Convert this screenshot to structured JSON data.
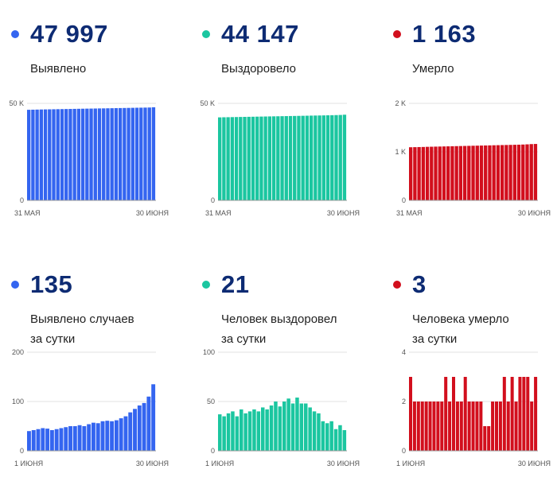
{
  "panels": [
    {
      "value": "47 997",
      "label_lines": [
        "Выявлено"
      ],
      "color": "#3465f0",
      "chart_data": {
        "type": "bar",
        "yticks": [
          {
            "v": 0,
            "label": "0"
          },
          {
            "v": 50000,
            "label": "50 K"
          }
        ],
        "ylim": [
          0,
          50000
        ],
        "xlabels": [
          "31 МАЯ",
          "30 ИЮНЯ"
        ],
        "values": [
          46690,
          46740,
          46790,
          46840,
          46880,
          46920,
          46960,
          47000,
          47040,
          47080,
          47120,
          47160,
          47200,
          47240,
          47280,
          47310,
          47350,
          47390,
          47420,
          47460,
          47500,
          47540,
          47580,
          47620,
          47660,
          47700,
          47740,
          47780,
          47820,
          47860,
          47997
        ]
      }
    },
    {
      "value": "44 147",
      "label_lines": [
        "Выздоровело"
      ],
      "color": "#1bc6a0",
      "chart_data": {
        "type": "bar",
        "yticks": [
          {
            "v": 0,
            "label": "0"
          },
          {
            "v": 50000,
            "label": "50 K"
          }
        ],
        "ylim": [
          0,
          50000
        ],
        "xlabels": [
          "31 МАЯ",
          "30 ИЮНЯ"
        ],
        "values": [
          42780,
          42830,
          42870,
          42910,
          42950,
          42990,
          43030,
          43070,
          43110,
          43150,
          43190,
          43230,
          43270,
          43310,
          43350,
          43390,
          43430,
          43470,
          43510,
          43550,
          43590,
          43630,
          43680,
          43720,
          43760,
          43800,
          43850,
          43900,
          43950,
          44020,
          44147
        ]
      }
    },
    {
      "value": "1 163",
      "label_lines": [
        "Умерло"
      ],
      "color": "#d20f1d",
      "chart_data": {
        "type": "bar",
        "yticks": [
          {
            "v": 0,
            "label": "0"
          },
          {
            "v": 1000,
            "label": "1 K"
          },
          {
            "v": 2000,
            "label": "2 K"
          }
        ],
        "ylim": [
          0,
          2000
        ],
        "xlabels": [
          "31 МАЯ",
          "30 ИЮНЯ"
        ],
        "values": [
          1095,
          1097,
          1099,
          1101,
          1104,
          1106,
          1108,
          1110,
          1112,
          1114,
          1116,
          1118,
          1120,
          1122,
          1124,
          1126,
          1128,
          1130,
          1132,
          1134,
          1136,
          1138,
          1140,
          1142,
          1144,
          1146,
          1148,
          1151,
          1155,
          1160,
          1163
        ]
      }
    },
    {
      "value": "135",
      "label_lines": [
        "Выявлено случаев",
        "за сутки"
      ],
      "color": "#3465f0",
      "chart_data": {
        "type": "bar",
        "yticks": [
          {
            "v": 0,
            "label": "0"
          },
          {
            "v": 100,
            "label": "100"
          },
          {
            "v": 200,
            "label": "200"
          }
        ],
        "ylim": [
          0,
          200
        ],
        "xlabels": [
          "1 ИЮНЯ",
          "30 ИЮНЯ"
        ],
        "values": [
          40,
          42,
          44,
          46,
          45,
          42,
          44,
          46,
          48,
          50,
          50,
          52,
          50,
          54,
          57,
          56,
          60,
          61,
          60,
          62,
          66,
          70,
          78,
          85,
          92,
          97,
          110,
          135
        ]
      }
    },
    {
      "value": "21",
      "label_lines": [
        "Человек выздоровел",
        "за сутки"
      ],
      "color": "#1bc6a0",
      "chart_data": {
        "type": "bar",
        "yticks": [
          {
            "v": 0,
            "label": "0"
          },
          {
            "v": 50,
            "label": "50"
          },
          {
            "v": 100,
            "label": "100"
          }
        ],
        "ylim": [
          0,
          100
        ],
        "xlabels": [
          "1 ИЮНЯ",
          "30 ИЮНЯ"
        ],
        "values": [
          37,
          35,
          38,
          40,
          35,
          42,
          38,
          40,
          42,
          40,
          44,
          42,
          46,
          50,
          45,
          50,
          53,
          48,
          54,
          48,
          48,
          44,
          40,
          38,
          30,
          28,
          30,
          22,
          26,
          21
        ]
      }
    },
    {
      "value": "3",
      "label_lines": [
        "Человека умерло",
        "за сутки"
      ],
      "color": "#d20f1d",
      "chart_data": {
        "type": "bar",
        "yticks": [
          {
            "v": 0,
            "label": "0"
          },
          {
            "v": 2,
            "label": "2"
          },
          {
            "v": 4,
            "label": "4"
          }
        ],
        "ylim": [
          0,
          4
        ],
        "xlabels": [
          "1 ИЮНЯ",
          "30 ИЮНЯ"
        ],
        "values": [
          3,
          2,
          2,
          2,
          2,
          2,
          2,
          2,
          2,
          3,
          2,
          3,
          2,
          2,
          3,
          2,
          2,
          2,
          2,
          1,
          1,
          2,
          2,
          2,
          3,
          2,
          3,
          2,
          3,
          3,
          3,
          2,
          3
        ]
      }
    }
  ]
}
